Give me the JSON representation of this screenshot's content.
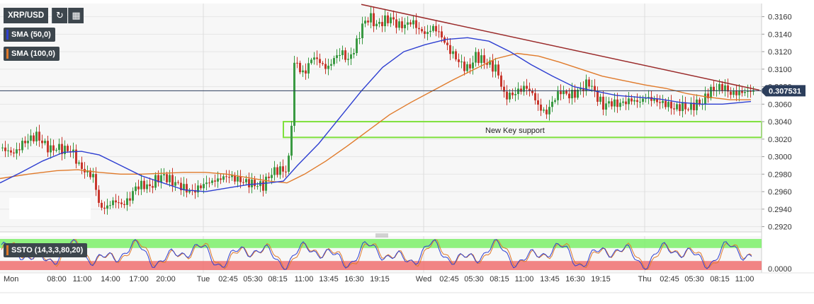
{
  "symbol": "XRP/USD",
  "toolbar": {
    "reload_icon": "reload-icon",
    "calendar_icon": "calendar-icon"
  },
  "indicators": {
    "sma50_label": "SMA (50,0)",
    "sma100_label": "SMA (100,0)",
    "ssto_label": "SSTO (14,3,3,80,20)"
  },
  "annotation": "New Key support",
  "current_price": "0.307531",
  "colors": {
    "up": "#3a9a43",
    "down": "#c8372d",
    "sma50": "#2e3fd1",
    "sma100": "#e07a2a",
    "trendline": "#9a2a2a",
    "support_box": "#7ee03c",
    "price_tag": "#2c3e5c",
    "ssto_top_band": "#7cf06a",
    "ssto_bottom_band": "#f07070"
  },
  "chart_data": {
    "type": "candlestick",
    "y_ticks": [
      "0.3160",
      "0.3140",
      "0.3120",
      "0.3100",
      "0.3080",
      "0.3060",
      "0.3040",
      "0.3020",
      "0.3000",
      "0.2980",
      "0.2960",
      "0.2940",
      "0.2920"
    ],
    "ylim": [
      0.2914,
      0.3175
    ],
    "x_ticks": [
      "Mon",
      "08:00",
      "11:00",
      "14:00",
      "17:00",
      "20:00",
      "Tue",
      "02:45",
      "05:30",
      "08:15",
      "11:00",
      "13:45",
      "16:30",
      "19:15",
      "Wed",
      "02:45",
      "05:30",
      "08:15",
      "11:00",
      "13:45",
      "16:30",
      "19:15",
      "Thu",
      "02:45",
      "05:30",
      "08:15",
      "11:00"
    ],
    "price_anchors": [
      [
        0,
        0.301
      ],
      [
        10,
        0.3006
      ],
      [
        20,
        0.3004
      ],
      [
        30,
        0.3015
      ],
      [
        40,
        0.302
      ],
      [
        50,
        0.3024
      ],
      [
        60,
        0.3015
      ],
      [
        70,
        0.3008
      ],
      [
        80,
        0.301
      ],
      [
        90,
        0.3008
      ],
      [
        100,
        0.3007
      ],
      [
        110,
        0.299
      ],
      [
        120,
        0.2982
      ],
      [
        130,
        0.2978
      ],
      [
        140,
        0.294
      ],
      [
        150,
        0.2943
      ],
      [
        160,
        0.295
      ],
      [
        170,
        0.2945
      ],
      [
        180,
        0.295
      ],
      [
        190,
        0.2965
      ],
      [
        200,
        0.2968
      ],
      [
        210,
        0.2965
      ],
      [
        220,
        0.2975
      ],
      [
        230,
        0.2978
      ],
      [
        240,
        0.2972
      ],
      [
        250,
        0.2968
      ],
      [
        260,
        0.2963
      ],
      [
        270,
        0.296
      ],
      [
        280,
        0.2965
      ],
      [
        290,
        0.297
      ],
      [
        300,
        0.2972
      ],
      [
        310,
        0.2975
      ],
      [
        320,
        0.2978
      ],
      [
        330,
        0.2975
      ],
      [
        340,
        0.2972
      ],
      [
        350,
        0.297
      ],
      [
        360,
        0.2968
      ],
      [
        370,
        0.2967
      ],
      [
        380,
        0.298
      ],
      [
        390,
        0.2985
      ],
      [
        400,
        0.2984
      ],
      [
        405,
        0.2986
      ],
      [
        410,
        0.304
      ],
      [
        415,
        0.312
      ],
      [
        420,
        0.31
      ],
      [
        425,
        0.3095
      ],
      [
        430,
        0.3098
      ],
      [
        440,
        0.3115
      ],
      [
        450,
        0.3108
      ],
      [
        460,
        0.31
      ],
      [
        470,
        0.3112
      ],
      [
        480,
        0.312
      ],
      [
        490,
        0.311
      ],
      [
        500,
        0.3125
      ],
      [
        510,
        0.315
      ],
      [
        520,
        0.316
      ],
      [
        530,
        0.315
      ],
      [
        540,
        0.3155
      ],
      [
        550,
        0.3158
      ],
      [
        560,
        0.315
      ],
      [
        570,
        0.315
      ],
      [
        580,
        0.3155
      ],
      [
        590,
        0.3145
      ],
      [
        600,
        0.314
      ],
      [
        610,
        0.3148
      ],
      [
        620,
        0.314
      ],
      [
        630,
        0.3125
      ],
      [
        640,
        0.3115
      ],
      [
        650,
        0.3105
      ],
      [
        660,
        0.31
      ],
      [
        670,
        0.3115
      ],
      [
        680,
        0.311
      ],
      [
        690,
        0.3105
      ],
      [
        700,
        0.31
      ],
      [
        710,
        0.307
      ],
      [
        720,
        0.307
      ],
      [
        730,
        0.3075
      ],
      [
        740,
        0.308
      ],
      [
        750,
        0.3072
      ],
      [
        760,
        0.3055
      ],
      [
        770,
        0.305
      ],
      [
        780,
        0.3065
      ],
      [
        790,
        0.3075
      ],
      [
        800,
        0.307
      ],
      [
        810,
        0.3072
      ],
      [
        820,
        0.3078
      ],
      [
        830,
        0.3085
      ],
      [
        840,
        0.307
      ],
      [
        850,
        0.3058
      ],
      [
        860,
        0.3062
      ],
      [
        870,
        0.306
      ],
      [
        880,
        0.3062
      ],
      [
        890,
        0.3065
      ],
      [
        900,
        0.3062
      ],
      [
        910,
        0.3068
      ],
      [
        920,
        0.3065
      ],
      [
        930,
        0.3062
      ],
      [
        940,
        0.306
      ],
      [
        950,
        0.3055
      ],
      [
        960,
        0.3058
      ],
      [
        970,
        0.3055
      ],
      [
        980,
        0.306
      ],
      [
        990,
        0.3062
      ],
      [
        1000,
        0.3075
      ],
      [
        1010,
        0.3078
      ],
      [
        1020,
        0.308
      ],
      [
        1030,
        0.3072
      ],
      [
        1040,
        0.3073
      ],
      [
        1050,
        0.3074
      ],
      [
        1060,
        0.3075
      ]
    ],
    "sma50": [
      [
        0,
        0.297
      ],
      [
        30,
        0.2982
      ],
      [
        60,
        0.2995
      ],
      [
        90,
        0.3005
      ],
      [
        115,
        0.3006
      ],
      [
        140,
        0.3002
      ],
      [
        170,
        0.299
      ],
      [
        200,
        0.2978
      ],
      [
        230,
        0.297
      ],
      [
        260,
        0.2962
      ],
      [
        290,
        0.296
      ],
      [
        320,
        0.2964
      ],
      [
        350,
        0.2968
      ],
      [
        380,
        0.297
      ],
      [
        400,
        0.2972
      ],
      [
        420,
        0.299
      ],
      [
        450,
        0.3015
      ],
      [
        480,
        0.3045
      ],
      [
        510,
        0.3075
      ],
      [
        540,
        0.3102
      ],
      [
        570,
        0.312
      ],
      [
        600,
        0.3128
      ],
      [
        630,
        0.3134
      ],
      [
        660,
        0.3136
      ],
      [
        690,
        0.3132
      ],
      [
        720,
        0.312
      ],
      [
        750,
        0.3105
      ],
      [
        780,
        0.3092
      ],
      [
        810,
        0.308
      ],
      [
        840,
        0.3075
      ],
      [
        870,
        0.307
      ],
      [
        900,
        0.3068
      ],
      [
        930,
        0.3066
      ],
      [
        960,
        0.3062
      ],
      [
        990,
        0.306
      ],
      [
        1020,
        0.306
      ],
      [
        1060,
        0.3063
      ]
    ],
    "sma100": [
      [
        0,
        0.2975
      ],
      [
        40,
        0.298
      ],
      [
        80,
        0.2984
      ],
      [
        110,
        0.2985
      ],
      [
        140,
        0.2982
      ],
      [
        170,
        0.298
      ],
      [
        200,
        0.298
      ],
      [
        230,
        0.2981
      ],
      [
        260,
        0.2982
      ],
      [
        290,
        0.2982
      ],
      [
        320,
        0.298
      ],
      [
        350,
        0.2976
      ],
      [
        380,
        0.2972
      ],
      [
        405,
        0.297
      ],
      [
        430,
        0.298
      ],
      [
        460,
        0.2995
      ],
      [
        490,
        0.3012
      ],
      [
        520,
        0.303
      ],
      [
        550,
        0.3048
      ],
      [
        580,
        0.3062
      ],
      [
        610,
        0.3075
      ],
      [
        640,
        0.3088
      ],
      [
        670,
        0.31
      ],
      [
        700,
        0.3112
      ],
      [
        730,
        0.3118
      ],
      [
        760,
        0.3115
      ],
      [
        790,
        0.3108
      ],
      [
        820,
        0.31
      ],
      [
        850,
        0.3092
      ],
      [
        880,
        0.3087
      ],
      [
        910,
        0.3082
      ],
      [
        940,
        0.3078
      ],
      [
        970,
        0.3072
      ],
      [
        1000,
        0.3068
      ],
      [
        1030,
        0.3065
      ],
      [
        1060,
        0.3065
      ]
    ],
    "trendline": [
      [
        510,
        0.3174
      ],
      [
        1072,
        0.3076
      ]
    ],
    "support_zone": {
      "y_low": 0.3022,
      "y_high": 0.304
    },
    "ssto": {
      "ylim": [
        0,
        100
      ],
      "y_tick": "0.0000",
      "upper_band": 80,
      "lower_band": 20
    }
  }
}
